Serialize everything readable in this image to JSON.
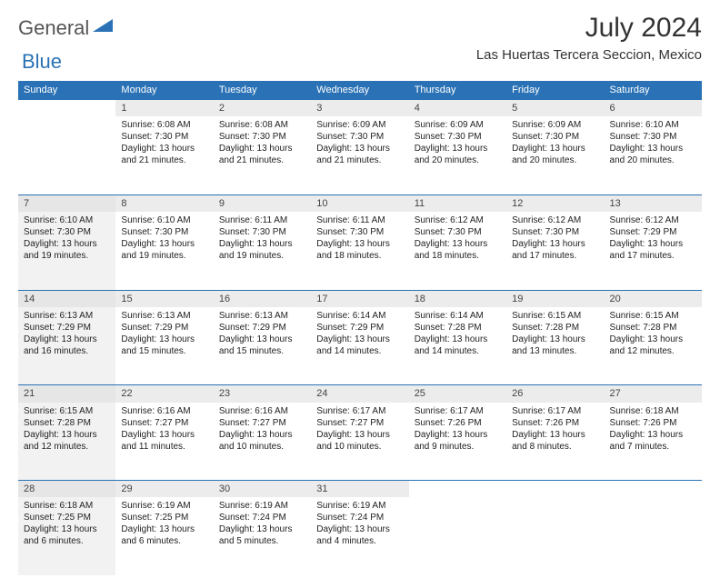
{
  "logo": {
    "word1": "General",
    "word2": "Blue"
  },
  "title": "July 2024",
  "location": "Las Huertas Tercera Seccion, Mexico",
  "colors": {
    "header_bg": "#2a72b5",
    "header_fg": "#ffffff",
    "daynum_bg": "#ececec",
    "border": "#2a72b5",
    "sunday_bg": "#f2f2f2",
    "page_bg": "#ffffff",
    "text": "#222222",
    "logo_gray": "#555555",
    "logo_blue": "#2a72b5"
  },
  "day_names": [
    "Sunday",
    "Monday",
    "Tuesday",
    "Wednesday",
    "Thursday",
    "Friday",
    "Saturday"
  ],
  "weeks": [
    {
      "daynums": [
        "",
        "1",
        "2",
        "3",
        "4",
        "5",
        "6"
      ],
      "cells": [
        null,
        {
          "sunrise": "Sunrise: 6:08 AM",
          "sunset": "Sunset: 7:30 PM",
          "daylight": "Daylight: 13 hours and 21 minutes."
        },
        {
          "sunrise": "Sunrise: 6:08 AM",
          "sunset": "Sunset: 7:30 PM",
          "daylight": "Daylight: 13 hours and 21 minutes."
        },
        {
          "sunrise": "Sunrise: 6:09 AM",
          "sunset": "Sunset: 7:30 PM",
          "daylight": "Daylight: 13 hours and 21 minutes."
        },
        {
          "sunrise": "Sunrise: 6:09 AM",
          "sunset": "Sunset: 7:30 PM",
          "daylight": "Daylight: 13 hours and 20 minutes."
        },
        {
          "sunrise": "Sunrise: 6:09 AM",
          "sunset": "Sunset: 7:30 PM",
          "daylight": "Daylight: 13 hours and 20 minutes."
        },
        {
          "sunrise": "Sunrise: 6:10 AM",
          "sunset": "Sunset: 7:30 PM",
          "daylight": "Daylight: 13 hours and 20 minutes."
        }
      ]
    },
    {
      "daynums": [
        "7",
        "8",
        "9",
        "10",
        "11",
        "12",
        "13"
      ],
      "cells": [
        {
          "sunrise": "Sunrise: 6:10 AM",
          "sunset": "Sunset: 7:30 PM",
          "daylight": "Daylight: 13 hours and 19 minutes."
        },
        {
          "sunrise": "Sunrise: 6:10 AM",
          "sunset": "Sunset: 7:30 PM",
          "daylight": "Daylight: 13 hours and 19 minutes."
        },
        {
          "sunrise": "Sunrise: 6:11 AM",
          "sunset": "Sunset: 7:30 PM",
          "daylight": "Daylight: 13 hours and 19 minutes."
        },
        {
          "sunrise": "Sunrise: 6:11 AM",
          "sunset": "Sunset: 7:30 PM",
          "daylight": "Daylight: 13 hours and 18 minutes."
        },
        {
          "sunrise": "Sunrise: 6:12 AM",
          "sunset": "Sunset: 7:30 PM",
          "daylight": "Daylight: 13 hours and 18 minutes."
        },
        {
          "sunrise": "Sunrise: 6:12 AM",
          "sunset": "Sunset: 7:30 PM",
          "daylight": "Daylight: 13 hours and 17 minutes."
        },
        {
          "sunrise": "Sunrise: 6:12 AM",
          "sunset": "Sunset: 7:29 PM",
          "daylight": "Daylight: 13 hours and 17 minutes."
        }
      ]
    },
    {
      "daynums": [
        "14",
        "15",
        "16",
        "17",
        "18",
        "19",
        "20"
      ],
      "cells": [
        {
          "sunrise": "Sunrise: 6:13 AM",
          "sunset": "Sunset: 7:29 PM",
          "daylight": "Daylight: 13 hours and 16 minutes."
        },
        {
          "sunrise": "Sunrise: 6:13 AM",
          "sunset": "Sunset: 7:29 PM",
          "daylight": "Daylight: 13 hours and 15 minutes."
        },
        {
          "sunrise": "Sunrise: 6:13 AM",
          "sunset": "Sunset: 7:29 PM",
          "daylight": "Daylight: 13 hours and 15 minutes."
        },
        {
          "sunrise": "Sunrise: 6:14 AM",
          "sunset": "Sunset: 7:29 PM",
          "daylight": "Daylight: 13 hours and 14 minutes."
        },
        {
          "sunrise": "Sunrise: 6:14 AM",
          "sunset": "Sunset: 7:28 PM",
          "daylight": "Daylight: 13 hours and 14 minutes."
        },
        {
          "sunrise": "Sunrise: 6:15 AM",
          "sunset": "Sunset: 7:28 PM",
          "daylight": "Daylight: 13 hours and 13 minutes."
        },
        {
          "sunrise": "Sunrise: 6:15 AM",
          "sunset": "Sunset: 7:28 PM",
          "daylight": "Daylight: 13 hours and 12 minutes."
        }
      ]
    },
    {
      "daynums": [
        "21",
        "22",
        "23",
        "24",
        "25",
        "26",
        "27"
      ],
      "cells": [
        {
          "sunrise": "Sunrise: 6:15 AM",
          "sunset": "Sunset: 7:28 PM",
          "daylight": "Daylight: 13 hours and 12 minutes."
        },
        {
          "sunrise": "Sunrise: 6:16 AM",
          "sunset": "Sunset: 7:27 PM",
          "daylight": "Daylight: 13 hours and 11 minutes."
        },
        {
          "sunrise": "Sunrise: 6:16 AM",
          "sunset": "Sunset: 7:27 PM",
          "daylight": "Daylight: 13 hours and 10 minutes."
        },
        {
          "sunrise": "Sunrise: 6:17 AM",
          "sunset": "Sunset: 7:27 PM",
          "daylight": "Daylight: 13 hours and 10 minutes."
        },
        {
          "sunrise": "Sunrise: 6:17 AM",
          "sunset": "Sunset: 7:26 PM",
          "daylight": "Daylight: 13 hours and 9 minutes."
        },
        {
          "sunrise": "Sunrise: 6:17 AM",
          "sunset": "Sunset: 7:26 PM",
          "daylight": "Daylight: 13 hours and 8 minutes."
        },
        {
          "sunrise": "Sunrise: 6:18 AM",
          "sunset": "Sunset: 7:26 PM",
          "daylight": "Daylight: 13 hours and 7 minutes."
        }
      ]
    },
    {
      "daynums": [
        "28",
        "29",
        "30",
        "31",
        "",
        "",
        ""
      ],
      "cells": [
        {
          "sunrise": "Sunrise: 6:18 AM",
          "sunset": "Sunset: 7:25 PM",
          "daylight": "Daylight: 13 hours and 6 minutes."
        },
        {
          "sunrise": "Sunrise: 6:19 AM",
          "sunset": "Sunset: 7:25 PM",
          "daylight": "Daylight: 13 hours and 6 minutes."
        },
        {
          "sunrise": "Sunrise: 6:19 AM",
          "sunset": "Sunset: 7:24 PM",
          "daylight": "Daylight: 13 hours and 5 minutes."
        },
        {
          "sunrise": "Sunrise: 6:19 AM",
          "sunset": "Sunset: 7:24 PM",
          "daylight": "Daylight: 13 hours and 4 minutes."
        },
        null,
        null,
        null
      ]
    }
  ]
}
